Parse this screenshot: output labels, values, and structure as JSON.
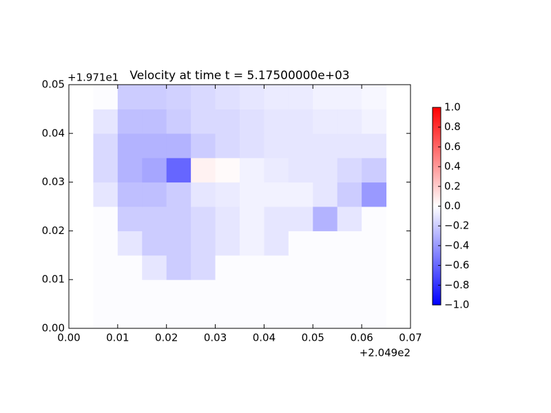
{
  "chart_data": {
    "type": "heatmap",
    "title": "Velocity at time t = 5.17500000e+03",
    "x_offset_label": "+2.049e2",
    "y_offset_label": "+1.971e1",
    "colormap": "bwr",
    "x": [
      0.0075,
      0.0125,
      0.0175,
      0.0225,
      0.0275,
      0.0325,
      0.0375,
      0.0425,
      0.0475,
      0.0525,
      0.0575,
      0.0625
    ],
    "y": [
      0.0025,
      0.0075,
      0.0125,
      0.0175,
      0.0225,
      0.0275,
      0.0325,
      0.0375,
      0.0425,
      0.0475
    ],
    "z": [
      [
        -0.01,
        -0.01,
        -0.01,
        -0.01,
        -0.01,
        -0.01,
        -0.01,
        -0.01,
        -0.01,
        -0.01,
        -0.01,
        -0.01
      ],
      [
        -0.01,
        -0.01,
        -0.01,
        -0.01,
        -0.01,
        -0.01,
        -0.01,
        -0.01,
        -0.01,
        -0.01,
        -0.01,
        -0.01
      ],
      [
        -0.01,
        -0.01,
        -0.1,
        -0.2,
        -0.15,
        -0.01,
        -0.01,
        -0.01,
        -0.01,
        -0.01,
        -0.01,
        -0.01
      ],
      [
        -0.01,
        -0.1,
        -0.2,
        -0.2,
        -0.15,
        -0.1,
        -0.05,
        -0.1,
        -0.01,
        -0.01,
        -0.01,
        -0.01
      ],
      [
        -0.01,
        -0.2,
        -0.2,
        -0.2,
        -0.15,
        -0.1,
        -0.05,
        -0.1,
        -0.1,
        -0.3,
        -0.1,
        -0.01
      ],
      [
        -0.1,
        -0.25,
        -0.25,
        -0.2,
        -0.1,
        -0.08,
        -0.05,
        -0.05,
        -0.05,
        -0.1,
        -0.2,
        -0.4
      ],
      [
        -0.15,
        -0.3,
        -0.35,
        -0.6,
        0.05,
        0.02,
        -0.05,
        -0.08,
        -0.1,
        -0.1,
        -0.15,
        -0.2
      ],
      [
        -0.15,
        -0.3,
        -0.3,
        -0.3,
        -0.2,
        -0.15,
        -0.12,
        -0.1,
        -0.1,
        -0.1,
        -0.1,
        -0.1
      ],
      [
        -0.1,
        -0.25,
        -0.25,
        -0.2,
        -0.15,
        -0.15,
        -0.12,
        -0.1,
        -0.1,
        -0.08,
        -0.08,
        -0.05
      ],
      [
        -0.01,
        -0.2,
        -0.2,
        -0.18,
        -0.15,
        -0.12,
        -0.1,
        -0.08,
        -0.08,
        -0.05,
        -0.05,
        -0.03
      ]
    ],
    "xlim": [
      0,
      0.07
    ],
    "xticks": [
      {
        "value": 0,
        "label": "0.00"
      },
      0.01,
      0.02,
      0.03,
      0.04,
      0.05,
      0.06,
      0.07
    ],
    "ylim": [
      0,
      0.05
    ],
    "yticks": [
      {
        "value": 0,
        "label": "0.00"
      },
      0.01,
      0.02,
      0.03,
      0.04,
      0.05
    ],
    "clim": [
      -1,
      1
    ],
    "cticks": [
      {
        "value": -1,
        "label": "−1.0"
      },
      {
        "value": -0.8,
        "label": "−0.8"
      },
      {
        "value": -0.6,
        "label": "−0.6"
      },
      {
        "value": -0.4,
        "label": "−0.4"
      },
      {
        "value": -0.2,
        "label": "−0.2"
      },
      {
        "value": 0,
        "label": "0.0"
      },
      {
        "value": 0.2,
        "label": "0.2"
      },
      {
        "value": 0.4,
        "label": "0.4"
      },
      {
        "value": 0.6,
        "label": "0.6"
      },
      {
        "value": 0.8,
        "label": "0.8"
      },
      {
        "value": 1,
        "label": "1.0"
      }
    ]
  }
}
